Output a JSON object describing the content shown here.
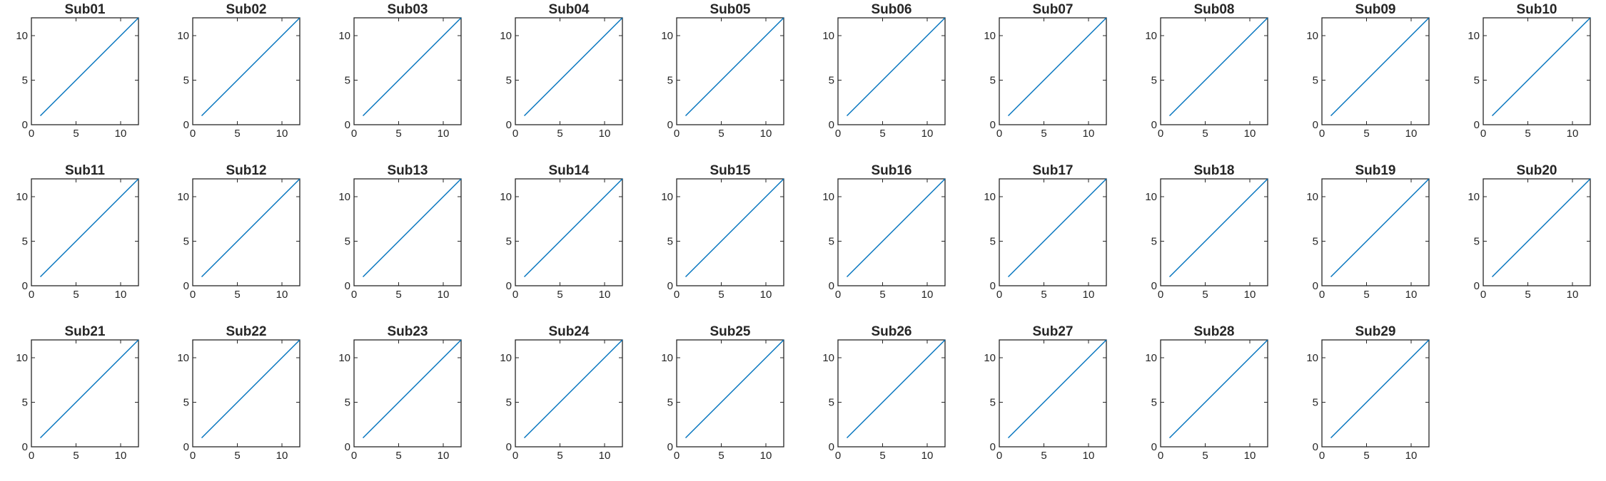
{
  "figure": {
    "series_color": "#0072BD"
  },
  "chart_data": [
    {
      "type": "line",
      "title": "Sub01",
      "xlim": [
        0,
        12
      ],
      "ylim": [
        0,
        12
      ],
      "xticks": [
        0,
        5,
        10
      ],
      "yticks": [
        0,
        5,
        10
      ],
      "x": [
        1,
        12
      ],
      "y": [
        1,
        12
      ]
    },
    {
      "type": "line",
      "title": "Sub02",
      "xlim": [
        0,
        12
      ],
      "ylim": [
        0,
        12
      ],
      "xticks": [
        0,
        5,
        10
      ],
      "yticks": [
        0,
        5,
        10
      ],
      "x": [
        1,
        12
      ],
      "y": [
        1,
        12
      ]
    },
    {
      "type": "line",
      "title": "Sub03",
      "xlim": [
        0,
        12
      ],
      "ylim": [
        0,
        12
      ],
      "xticks": [
        0,
        5,
        10
      ],
      "yticks": [
        0,
        5,
        10
      ],
      "x": [
        1,
        12
      ],
      "y": [
        1,
        12
      ]
    },
    {
      "type": "line",
      "title": "Sub04",
      "xlim": [
        0,
        12
      ],
      "ylim": [
        0,
        12
      ],
      "xticks": [
        0,
        5,
        10
      ],
      "yticks": [
        0,
        5,
        10
      ],
      "x": [
        1,
        12
      ],
      "y": [
        1,
        12
      ]
    },
    {
      "type": "line",
      "title": "Sub05",
      "xlim": [
        0,
        12
      ],
      "ylim": [
        0,
        12
      ],
      "xticks": [
        0,
        5,
        10
      ],
      "yticks": [
        0,
        5,
        10
      ],
      "x": [
        1,
        12
      ],
      "y": [
        1,
        12
      ]
    },
    {
      "type": "line",
      "title": "Sub06",
      "xlim": [
        0,
        12
      ],
      "ylim": [
        0,
        12
      ],
      "xticks": [
        0,
        5,
        10
      ],
      "yticks": [
        0,
        5,
        10
      ],
      "x": [
        1,
        12
      ],
      "y": [
        1,
        12
      ]
    },
    {
      "type": "line",
      "title": "Sub07",
      "xlim": [
        0,
        12
      ],
      "ylim": [
        0,
        12
      ],
      "xticks": [
        0,
        5,
        10
      ],
      "yticks": [
        0,
        5,
        10
      ],
      "x": [
        1,
        12
      ],
      "y": [
        1,
        12
      ]
    },
    {
      "type": "line",
      "title": "Sub08",
      "xlim": [
        0,
        12
      ],
      "ylim": [
        0,
        12
      ],
      "xticks": [
        0,
        5,
        10
      ],
      "yticks": [
        0,
        5,
        10
      ],
      "x": [
        1,
        12
      ],
      "y": [
        1,
        12
      ]
    },
    {
      "type": "line",
      "title": "Sub09",
      "xlim": [
        0,
        12
      ],
      "ylim": [
        0,
        12
      ],
      "xticks": [
        0,
        5,
        10
      ],
      "yticks": [
        0,
        5,
        10
      ],
      "x": [
        1,
        12
      ],
      "y": [
        1,
        12
      ]
    },
    {
      "type": "line",
      "title": "Sub10",
      "xlim": [
        0,
        12
      ],
      "ylim": [
        0,
        12
      ],
      "xticks": [
        0,
        5,
        10
      ],
      "yticks": [
        0,
        5,
        10
      ],
      "x": [
        1,
        12
      ],
      "y": [
        1,
        12
      ]
    },
    {
      "type": "line",
      "title": "Sub11",
      "xlim": [
        0,
        12
      ],
      "ylim": [
        0,
        12
      ],
      "xticks": [
        0,
        5,
        10
      ],
      "yticks": [
        0,
        5,
        10
      ],
      "x": [
        1,
        12
      ],
      "y": [
        1,
        12
      ]
    },
    {
      "type": "line",
      "title": "Sub12",
      "xlim": [
        0,
        12
      ],
      "ylim": [
        0,
        12
      ],
      "xticks": [
        0,
        5,
        10
      ],
      "yticks": [
        0,
        5,
        10
      ],
      "x": [
        1,
        12
      ],
      "y": [
        1,
        12
      ]
    },
    {
      "type": "line",
      "title": "Sub13",
      "xlim": [
        0,
        12
      ],
      "ylim": [
        0,
        12
      ],
      "xticks": [
        0,
        5,
        10
      ],
      "yticks": [
        0,
        5,
        10
      ],
      "x": [
        1,
        12
      ],
      "y": [
        1,
        12
      ]
    },
    {
      "type": "line",
      "title": "Sub14",
      "xlim": [
        0,
        12
      ],
      "ylim": [
        0,
        12
      ],
      "xticks": [
        0,
        5,
        10
      ],
      "yticks": [
        0,
        5,
        10
      ],
      "x": [
        1,
        12
      ],
      "y": [
        1,
        12
      ]
    },
    {
      "type": "line",
      "title": "Sub15",
      "xlim": [
        0,
        12
      ],
      "ylim": [
        0,
        12
      ],
      "xticks": [
        0,
        5,
        10
      ],
      "yticks": [
        0,
        5,
        10
      ],
      "x": [
        1,
        12
      ],
      "y": [
        1,
        12
      ]
    },
    {
      "type": "line",
      "title": "Sub16",
      "xlim": [
        0,
        12
      ],
      "ylim": [
        0,
        12
      ],
      "xticks": [
        0,
        5,
        10
      ],
      "yticks": [
        0,
        5,
        10
      ],
      "x": [
        1,
        12
      ],
      "y": [
        1,
        12
      ]
    },
    {
      "type": "line",
      "title": "Sub17",
      "xlim": [
        0,
        12
      ],
      "ylim": [
        0,
        12
      ],
      "xticks": [
        0,
        5,
        10
      ],
      "yticks": [
        0,
        5,
        10
      ],
      "x": [
        1,
        12
      ],
      "y": [
        1,
        12
      ]
    },
    {
      "type": "line",
      "title": "Sub18",
      "xlim": [
        0,
        12
      ],
      "ylim": [
        0,
        12
      ],
      "xticks": [
        0,
        5,
        10
      ],
      "yticks": [
        0,
        5,
        10
      ],
      "x": [
        1,
        12
      ],
      "y": [
        1,
        12
      ]
    },
    {
      "type": "line",
      "title": "Sub19",
      "xlim": [
        0,
        12
      ],
      "ylim": [
        0,
        12
      ],
      "xticks": [
        0,
        5,
        10
      ],
      "yticks": [
        0,
        5,
        10
      ],
      "x": [
        1,
        12
      ],
      "y": [
        1,
        12
      ]
    },
    {
      "type": "line",
      "title": "Sub20",
      "xlim": [
        0,
        12
      ],
      "ylim": [
        0,
        12
      ],
      "xticks": [
        0,
        5,
        10
      ],
      "yticks": [
        0,
        5,
        10
      ],
      "x": [
        1,
        12
      ],
      "y": [
        1,
        12
      ]
    },
    {
      "type": "line",
      "title": "Sub21",
      "xlim": [
        0,
        12
      ],
      "ylim": [
        0,
        12
      ],
      "xticks": [
        0,
        5,
        10
      ],
      "yticks": [
        0,
        5,
        10
      ],
      "x": [
        1,
        12
      ],
      "y": [
        1,
        12
      ]
    },
    {
      "type": "line",
      "title": "Sub22",
      "xlim": [
        0,
        12
      ],
      "ylim": [
        0,
        12
      ],
      "xticks": [
        0,
        5,
        10
      ],
      "yticks": [
        0,
        5,
        10
      ],
      "x": [
        1,
        12
      ],
      "y": [
        1,
        12
      ]
    },
    {
      "type": "line",
      "title": "Sub23",
      "xlim": [
        0,
        12
      ],
      "ylim": [
        0,
        12
      ],
      "xticks": [
        0,
        5,
        10
      ],
      "yticks": [
        0,
        5,
        10
      ],
      "x": [
        1,
        12
      ],
      "y": [
        1,
        12
      ]
    },
    {
      "type": "line",
      "title": "Sub24",
      "xlim": [
        0,
        12
      ],
      "ylim": [
        0,
        12
      ],
      "xticks": [
        0,
        5,
        10
      ],
      "yticks": [
        0,
        5,
        10
      ],
      "x": [
        1,
        12
      ],
      "y": [
        1,
        12
      ]
    },
    {
      "type": "line",
      "title": "Sub25",
      "xlim": [
        0,
        12
      ],
      "ylim": [
        0,
        12
      ],
      "xticks": [
        0,
        5,
        10
      ],
      "yticks": [
        0,
        5,
        10
      ],
      "x": [
        1,
        12
      ],
      "y": [
        1,
        12
      ]
    },
    {
      "type": "line",
      "title": "Sub26",
      "xlim": [
        0,
        12
      ],
      "ylim": [
        0,
        12
      ],
      "xticks": [
        0,
        5,
        10
      ],
      "yticks": [
        0,
        5,
        10
      ],
      "x": [
        1,
        12
      ],
      "y": [
        1,
        12
      ]
    },
    {
      "type": "line",
      "title": "Sub27",
      "xlim": [
        0,
        12
      ],
      "ylim": [
        0,
        12
      ],
      "xticks": [
        0,
        5,
        10
      ],
      "yticks": [
        0,
        5,
        10
      ],
      "x": [
        1,
        12
      ],
      "y": [
        1,
        12
      ]
    },
    {
      "type": "line",
      "title": "Sub28",
      "xlim": [
        0,
        12
      ],
      "ylim": [
        0,
        12
      ],
      "xticks": [
        0,
        5,
        10
      ],
      "yticks": [
        0,
        5,
        10
      ],
      "x": [
        1,
        12
      ],
      "y": [
        1,
        12
      ]
    },
    {
      "type": "line",
      "title": "Sub29",
      "xlim": [
        0,
        12
      ],
      "ylim": [
        0,
        12
      ],
      "xticks": [
        0,
        5,
        10
      ],
      "yticks": [
        0,
        5,
        10
      ],
      "x": [
        1,
        12
      ],
      "y": [
        1,
        12
      ]
    }
  ]
}
